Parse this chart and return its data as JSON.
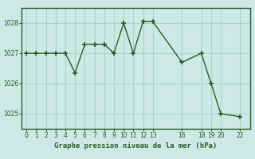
{
  "x": [
    0,
    1,
    2,
    3,
    4,
    5,
    6,
    7,
    8,
    9,
    10,
    11,
    12,
    13,
    16,
    18,
    19,
    20,
    22
  ],
  "y": [
    1027.0,
    1027.0,
    1027.0,
    1027.0,
    1027.0,
    1026.35,
    1027.3,
    1027.3,
    1027.3,
    1027.0,
    1028.0,
    1027.0,
    1028.05,
    1028.05,
    1026.7,
    1027.0,
    1026.0,
    1025.0,
    1024.9
  ],
  "line_color": "#2d5a27",
  "marker_color": "#2d5a27",
  "bg_color": "#cce9e5",
  "grid_color": "#aad4ce",
  "spine_color": "#2d5a27",
  "title": "Graphe pression niveau de la mer (hPa)",
  "xticks": [
    0,
    1,
    2,
    3,
    4,
    5,
    6,
    7,
    8,
    9,
    10,
    11,
    12,
    13,
    16,
    18,
    19,
    20,
    22
  ],
  "yticks": [
    1025,
    1026,
    1027,
    1028
  ],
  "ylim": [
    1024.5,
    1028.5
  ],
  "xlim": [
    -0.5,
    23.0
  ],
  "tick_color": "#2d5a27",
  "label_color": "#2d5a27"
}
